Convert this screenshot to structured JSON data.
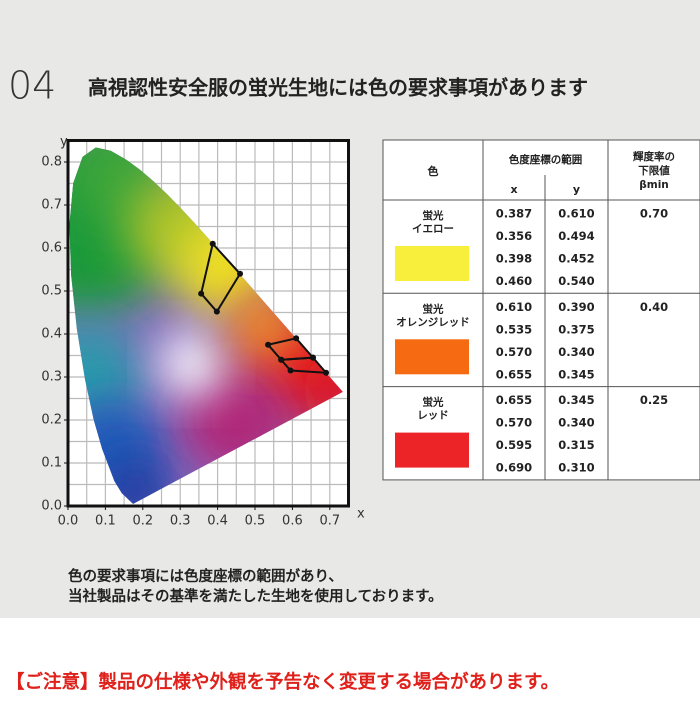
{
  "header": {
    "number": "04",
    "title": "高視認性安全服の蛍光生地には色の要求事項があります"
  },
  "chart": {
    "x_label": "x",
    "y_label": "y",
    "xlim": [
      0,
      0.75
    ],
    "ylim": [
      0,
      0.85
    ],
    "xticks": [
      {
        "value": 0,
        "label": "0.0"
      },
      {
        "value": 0.1,
        "label": "0.1"
      },
      {
        "value": 0.2,
        "label": "0.2"
      },
      {
        "value": 0.3,
        "label": "0.3"
      },
      {
        "value": 0.4,
        "label": "0.4"
      },
      {
        "value": 0.5,
        "label": "0.5"
      },
      {
        "value": 0.6,
        "label": "0.6"
      },
      {
        "value": 0.7,
        "label": "0.7"
      }
    ],
    "yticks": [
      {
        "value": 0,
        "label": "0.0"
      },
      {
        "value": 0.1,
        "label": "0.1"
      },
      {
        "value": 0.2,
        "label": "0.2"
      },
      {
        "value": 0.3,
        "label": "0.3"
      },
      {
        "value": 0.4,
        "label": "0.4"
      },
      {
        "value": 0.5,
        "label": "0.5"
      },
      {
        "value": 0.6,
        "label": "0.6"
      },
      {
        "value": 0.7,
        "label": "0.7"
      },
      {
        "value": 0.8,
        "label": "0.8"
      }
    ]
  },
  "table": {
    "color_header": "色",
    "coord_header": "色度座標の範囲",
    "x_header": "x",
    "y_header": "y",
    "beta_header": [
      "輝度率の",
      "下限値",
      "βmin"
    ],
    "groups": [
      {
        "name": [
          "蛍光",
          "イエロー"
        ],
        "swatch": "#f8ef3c",
        "beta": "0.70",
        "points": [
          [
            "0.387",
            "0.610"
          ],
          [
            "0.356",
            "0.494"
          ],
          [
            "0.398",
            "0.452"
          ],
          [
            "0.460",
            "0.540"
          ]
        ]
      },
      {
        "name": [
          "蛍光",
          "オレンジレッド"
        ],
        "swatch": "#f66a12",
        "beta": "0.40",
        "points": [
          [
            "0.610",
            "0.390"
          ],
          [
            "0.535",
            "0.375"
          ],
          [
            "0.570",
            "0.340"
          ],
          [
            "0.655",
            "0.345"
          ]
        ]
      },
      {
        "name": [
          "蛍光",
          "レッド"
        ],
        "swatch": "#ec2428",
        "beta": "0.25",
        "points": [
          [
            "0.655",
            "0.345"
          ],
          [
            "0.570",
            "0.340"
          ],
          [
            "0.595",
            "0.315"
          ],
          [
            "0.690",
            "0.310"
          ]
        ]
      }
    ]
  },
  "notes": [
    "色の要求事項には色度座標の範囲があり、",
    "当社製品はその基準を満たした生地を使用しております。"
  ],
  "caution": "【ご注意】製品の仕様や外観を予告なく変更する場合があります。"
}
